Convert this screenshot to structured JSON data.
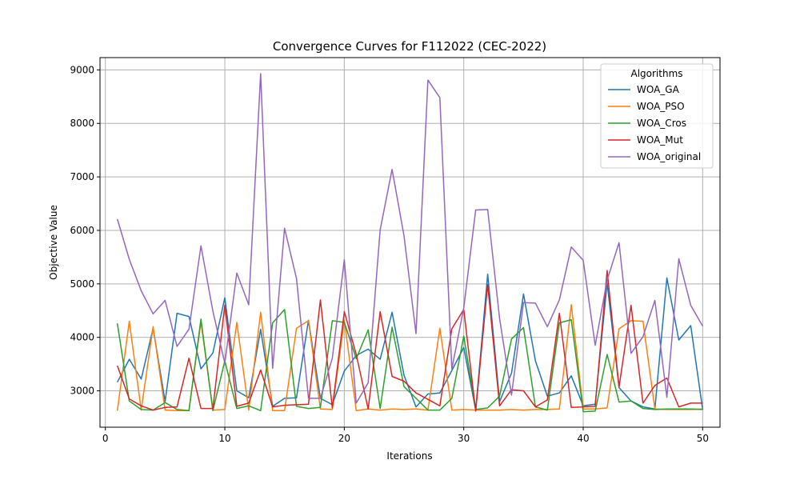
{
  "chart_data": {
    "type": "line",
    "title": "Convergence Curves for F112022 (CEC-2022)",
    "xlabel": "Iterations",
    "ylabel": "Objective Value",
    "xlim": [
      -0.45,
      51.45
    ],
    "ylim": [
      2320,
      9230
    ],
    "xticks": [
      0,
      10,
      20,
      30,
      40,
      50
    ],
    "yticks": [
      3000,
      4000,
      5000,
      6000,
      7000,
      8000,
      9000
    ],
    "grid": true,
    "legend": {
      "title": "Algorithms",
      "placement": "upper-right"
    },
    "x": [
      1,
      2,
      3,
      4,
      5,
      6,
      7,
      8,
      9,
      10,
      11,
      12,
      13,
      14,
      15,
      16,
      17,
      18,
      19,
      20,
      21,
      22,
      23,
      24,
      25,
      26,
      27,
      28,
      29,
      30,
      31,
      32,
      33,
      34,
      35,
      36,
      37,
      38,
      39,
      40,
      41,
      42,
      43,
      44,
      45,
      46,
      47,
      48,
      49,
      50
    ],
    "series": [
      {
        "name": "WOA_GA",
        "color": "#1f77b4",
        "values": [
          3160,
          3590,
          3220,
          4170,
          2800,
          4450,
          4390,
          3410,
          3710,
          4740,
          3000,
          2870,
          4150,
          2710,
          2860,
          2870,
          4320,
          2860,
          2740,
          3370,
          3660,
          3780,
          3590,
          4470,
          3290,
          2700,
          2940,
          2960,
          3380,
          3810,
          2640,
          5180,
          2800,
          3330,
          4810,
          3560,
          2900,
          2960,
          3280,
          2720,
          2750,
          5020,
          3060,
          2810,
          2700,
          2660,
          5110,
          3950,
          4220,
          2650
        ]
      },
      {
        "name": "WOA_PSO",
        "color": "#ff7f0e",
        "values": [
          2630,
          4300,
          2640,
          4200,
          2640,
          2630,
          2630,
          4290,
          2640,
          2650,
          4280,
          2640,
          4470,
          2630,
          2630,
          4170,
          4310,
          2660,
          2650,
          4320,
          2630,
          2660,
          2640,
          2660,
          2650,
          2660,
          2640,
          4170,
          2640,
          2650,
          2640,
          2640,
          2640,
          2650,
          2640,
          2650,
          2650,
          2660,
          4610,
          2660,
          2660,
          2680,
          4160,
          4310,
          4300,
          2660,
          2650,
          2650,
          2650,
          2660
        ]
      },
      {
        "name": "WOA_Cros",
        "color": "#2ca02c",
        "values": [
          4260,
          2810,
          2650,
          2640,
          2780,
          2650,
          2630,
          4340,
          2630,
          3560,
          2670,
          2720,
          2630,
          4270,
          4520,
          2710,
          2670,
          2690,
          4310,
          4280,
          3600,
          4140,
          2670,
          4190,
          3080,
          2860,
          2640,
          2640,
          2860,
          4020,
          2650,
          2680,
          2900,
          3970,
          4180,
          2700,
          2640,
          4270,
          4330,
          2610,
          2620,
          3680,
          2790,
          2810,
          2670,
          2650,
          2660,
          2660,
          2660,
          2650
        ]
      },
      {
        "name": "WOA_Mut",
        "color": "#d62728",
        "values": [
          3470,
          2850,
          2720,
          2640,
          2690,
          2700,
          3610,
          2670,
          2670,
          4600,
          2710,
          2770,
          3390,
          2700,
          2730,
          2740,
          2750,
          4700,
          2680,
          4480,
          3680,
          2660,
          4480,
          3270,
          3180,
          2960,
          2840,
          2720,
          4160,
          4520,
          2620,
          4990,
          2720,
          3020,
          3000,
          2700,
          2830,
          4450,
          2690,
          2700,
          2710,
          5250,
          3070,
          4600,
          2770,
          3100,
          3240,
          2700,
          2770,
          2770
        ]
      },
      {
        "name": "WOA_original",
        "color": "#9467bd",
        "values": [
          6210,
          5460,
          4870,
          4440,
          4690,
          3830,
          4150,
          5710,
          4490,
          3520,
          5200,
          4610,
          8930,
          3420,
          6040,
          5100,
          2860,
          2860,
          3610,
          5450,
          2770,
          3150,
          6010,
          7140,
          5900,
          4070,
          8810,
          8480,
          3410,
          4550,
          6380,
          6390,
          4350,
          2920,
          4650,
          4640,
          4200,
          4700,
          5690,
          5440,
          3850,
          5070,
          5770,
          3700,
          4010,
          4690,
          2880,
          5470,
          4600,
          4210
        ]
      }
    ]
  }
}
